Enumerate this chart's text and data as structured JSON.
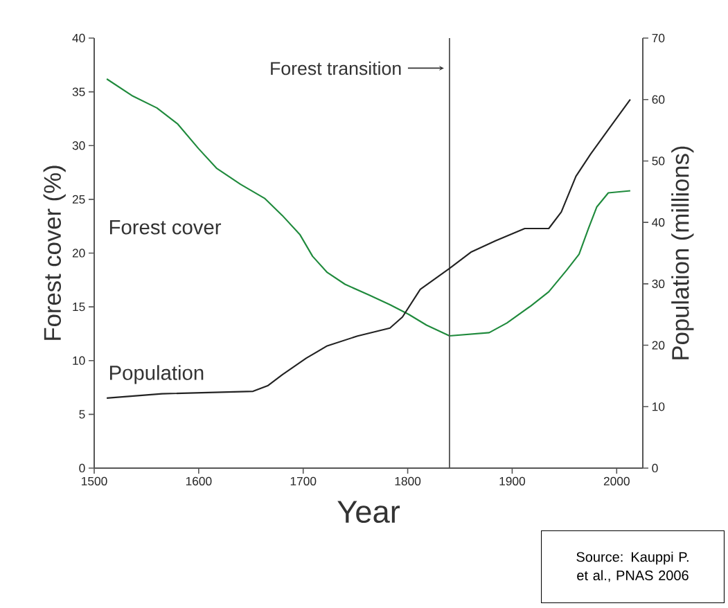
{
  "chart_data": {
    "type": "line",
    "xlabel": "Year",
    "ylabel": "Forest cover (%)",
    "y2label": "Population (millions)",
    "xlim": [
      1500,
      2025
    ],
    "xticks": [
      1500,
      1600,
      1700,
      1800,
      1900,
      2000
    ],
    "ylim": [
      0,
      40
    ],
    "yticks": [
      0,
      5,
      10,
      15,
      20,
      25,
      30,
      35,
      40
    ],
    "y2lim": [
      0,
      70
    ],
    "y2ticks": [
      0,
      10,
      20,
      30,
      40,
      50,
      60,
      70
    ],
    "marker": "none",
    "line_style": "solid",
    "series": [
      {
        "name": "Forest cover",
        "color": "#1f8a3c",
        "x": [
          1512,
          1537,
          1560,
          1580,
          1600,
          1617,
          1640,
          1663,
          1680,
          1697,
          1709,
          1723,
          1740,
          1763,
          1783,
          1801,
          1818,
          1840,
          1878,
          1895,
          1918,
          1935,
          1952,
          1964,
          1973,
          1981,
          1992,
          2013
        ],
        "values": [
          36.2,
          34.6,
          33.5,
          32.0,
          29.7,
          27.9,
          26.4,
          25.1,
          23.5,
          21.7,
          19.7,
          18.2,
          17.1,
          16.1,
          15.2,
          14.3,
          13.3,
          12.3,
          12.6,
          13.5,
          15.1,
          16.4,
          18.4,
          19.9,
          22.3,
          24.3,
          25.6,
          25.8
        ]
      },
      {
        "name": "Population",
        "color": "#222222",
        "axis": "y2",
        "x": [
          1512,
          1565,
          1652,
          1666,
          1680,
          1703,
          1723,
          1752,
          1783,
          1795,
          1812,
          1840,
          1861,
          1884,
          1912,
          1935,
          1947,
          1961,
          1975,
          1992,
          2013
        ],
        "values": [
          11.4,
          12.1,
          12.5,
          13.4,
          15.2,
          17.9,
          19.9,
          21.5,
          22.8,
          24.6,
          29.1,
          32.5,
          35.2,
          37.0,
          39.0,
          39.0,
          41.7,
          47.5,
          51.1,
          55.1,
          60.0
        ]
      }
    ],
    "ref_lines": [
      {
        "axis": "x",
        "value": 1840,
        "label": "Forest transition",
        "color": "#555555"
      }
    ],
    "annotations": [
      "Source: Kauppi P. et al., PNAS 2006"
    ]
  }
}
